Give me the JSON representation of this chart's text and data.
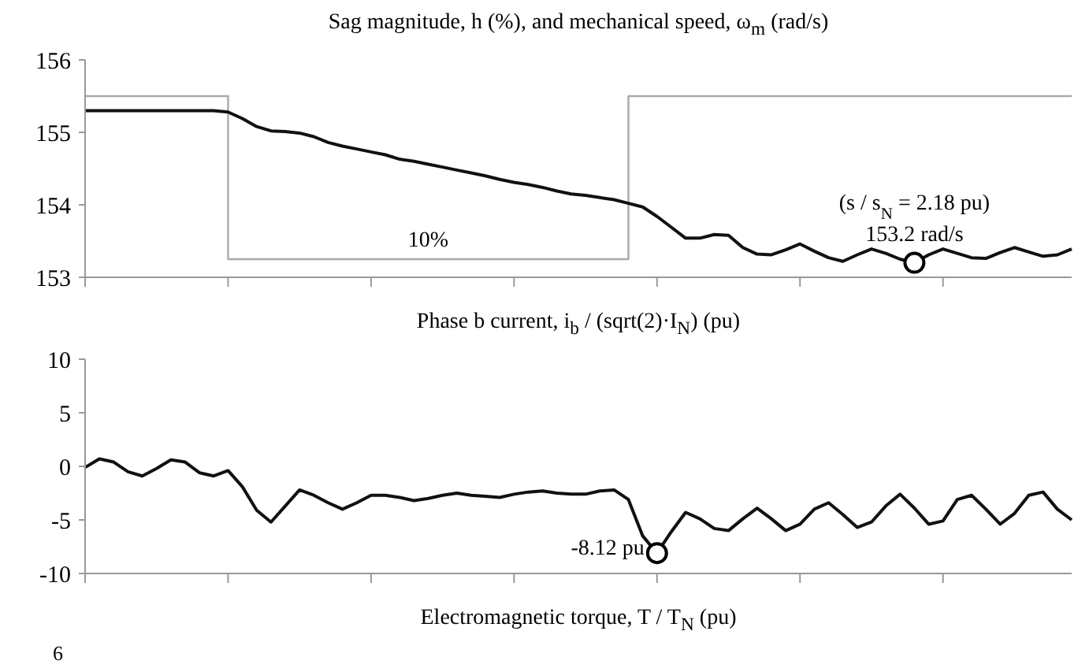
{
  "chart_data": [
    {
      "type": "line",
      "title": "Sag magnitude, h (%), and mechanical speed, ω$_{m}$ (rad/s)",
      "categories": [
        null,
        null,
        null,
        null,
        null,
        null,
        null,
        null,
        null,
        null,
        null,
        null,
        null,
        null,
        null,
        null,
        null,
        null,
        null,
        null,
        null,
        null,
        null,
        null,
        null,
        null,
        null,
        null,
        null,
        null,
        null,
        null,
        null,
        null,
        null,
        null,
        null,
        null,
        null,
        null,
        null,
        null,
        null,
        null,
        null,
        null,
        null,
        null,
        null,
        null,
        null,
        null,
        null,
        null,
        null,
        null,
        null,
        null,
        null,
        null,
        null,
        null,
        null,
        null,
        null,
        null,
        null,
        null,
        null,
        null
      ],
      "ylim": [
        153,
        156
      ],
      "yticks": [
        153,
        154,
        155,
        156
      ],
      "y2lim": [
        0,
        120
      ],
      "series": [
        {
          "type": "step",
          "color": "#aaaaaa",
          "axis": "y2",
          "values": [
            100,
            100,
            100,
            100,
            100,
            100,
            100,
            100,
            100,
            100,
            10,
            10,
            10,
            10,
            10,
            10,
            10,
            10,
            10,
            10,
            10,
            10,
            10,
            10,
            10,
            10,
            10,
            10,
            10,
            10,
            10,
            10,
            10,
            10,
            10,
            10,
            10,
            10,
            100,
            100,
            100,
            100,
            100,
            100,
            100,
            100,
            100,
            100,
            100,
            100,
            100,
            100,
            100,
            100,
            100,
            100,
            100,
            100,
            100,
            100,
            100,
            100,
            100,
            100,
            100,
            100,
            100,
            100,
            100,
            100
          ],
          "value_labels": [
            null,
            null,
            null,
            null,
            null,
            null,
            null,
            null,
            null,
            null,
            null,
            null,
            null,
            null,
            null,
            null,
            null,
            null,
            null,
            null,
            null,
            null,
            null,
            null,
            "10%",
            null,
            null,
            null,
            null,
            null,
            null,
            null,
            null,
            null,
            null,
            null,
            null,
            null,
            null,
            null,
            null,
            null,
            null,
            null,
            null,
            null,
            null,
            null,
            null,
            null,
            null,
            null,
            null,
            null,
            null,
            null,
            null,
            null,
            null,
            null,
            null,
            null,
            null,
            null,
            null,
            null,
            null,
            null,
            null,
            null
          ]
        },
        {
          "color": "#111111",
          "values": [
            155.3,
            155.3,
            155.3,
            155.3,
            155.3,
            155.3,
            155.3,
            155.3,
            155.3,
            155.3,
            155.28,
            155.19,
            155.08,
            155.02,
            155.01,
            154.99,
            154.94,
            154.86,
            154.81,
            154.77,
            154.73,
            154.69,
            154.63,
            154.6,
            154.56,
            154.52,
            154.48,
            154.44,
            154.4,
            154.35,
            154.31,
            154.28,
            154.24,
            154.19,
            154.15,
            154.13,
            154.1,
            154.07,
            154.02,
            153.97,
            153.84,
            153.69,
            153.54,
            153.54,
            153.59,
            153.58,
            153.41,
            153.32,
            153.31,
            153.38,
            153.46,
            153.36,
            153.27,
            153.22,
            153.31,
            153.39,
            153.33,
            153.25,
            153.2,
            153.31,
            153.39,
            153.33,
            153.27,
            153.26,
            153.34,
            153.41,
            153.35,
            153.29,
            153.31,
            153.39
          ]
        }
      ],
      "annotations": [
        "(s / s$_{N}$ = 2.18 pu)",
        "153.2 rad/s"
      ]
    },
    {
      "type": "line",
      "title": "Phase b current, i$_{b}$ / (sqrt(2)·I$_{N}$) (pu)",
      "categories": [
        null,
        null,
        null,
        null,
        null,
        null,
        null,
        null,
        null,
        null,
        null,
        null,
        null,
        null,
        null,
        null,
        null,
        null,
        null,
        null,
        null,
        null,
        null,
        null,
        null,
        null,
        null,
        null,
        null,
        null,
        null,
        null,
        null,
        null,
        null,
        null,
        null,
        null,
        null,
        null,
        null,
        null,
        null,
        null,
        null,
        null,
        null,
        null,
        null,
        null,
        null,
        null,
        null,
        null,
        null,
        null,
        null,
        null,
        null,
        null,
        null,
        null,
        null,
        null,
        null,
        null,
        null,
        null,
        null,
        null
      ],
      "ylim": [
        -10,
        10
      ],
      "yticks": [
        -10,
        -5,
        0,
        5,
        10
      ],
      "series": [
        {
          "color": "#111111",
          "values": [
            -0.1,
            0.7,
            0.4,
            -0.5,
            -0.9,
            -0.2,
            0.6,
            0.4,
            -0.6,
            -0.9,
            -0.4,
            -1.9,
            -4.1,
            -5.2,
            -3.7,
            -2.2,
            -2.7,
            -3.4,
            -4.0,
            -3.4,
            -2.7,
            -2.7,
            -2.9,
            -3.2,
            -3.0,
            -2.7,
            -2.5,
            -2.7,
            -2.8,
            -2.9,
            -2.6,
            -2.4,
            -2.3,
            -2.5,
            -2.6,
            -2.6,
            -2.3,
            -2.2,
            -3.1,
            -6.5,
            -8.1,
            -6.1,
            -4.3,
            -4.9,
            -5.8,
            -6.0,
            -4.9,
            -3.9,
            -4.9,
            -6.0,
            -5.4,
            -4.0,
            -3.4,
            -4.5,
            -5.7,
            -5.2,
            -3.7,
            -2.6,
            -3.9,
            -5.4,
            -5.1,
            -3.1,
            -2.7,
            -4.0,
            -5.4,
            -4.4,
            -2.7,
            -2.4,
            -4.0,
            -5.0
          ]
        }
      ],
      "annotations": [
        "-8.12 pu"
      ]
    },
    {
      "type": "other",
      "title": "Electromagnetic torque, T / T$_{N}$ (pu)",
      "annotations": [
        "6"
      ]
    }
  ]
}
